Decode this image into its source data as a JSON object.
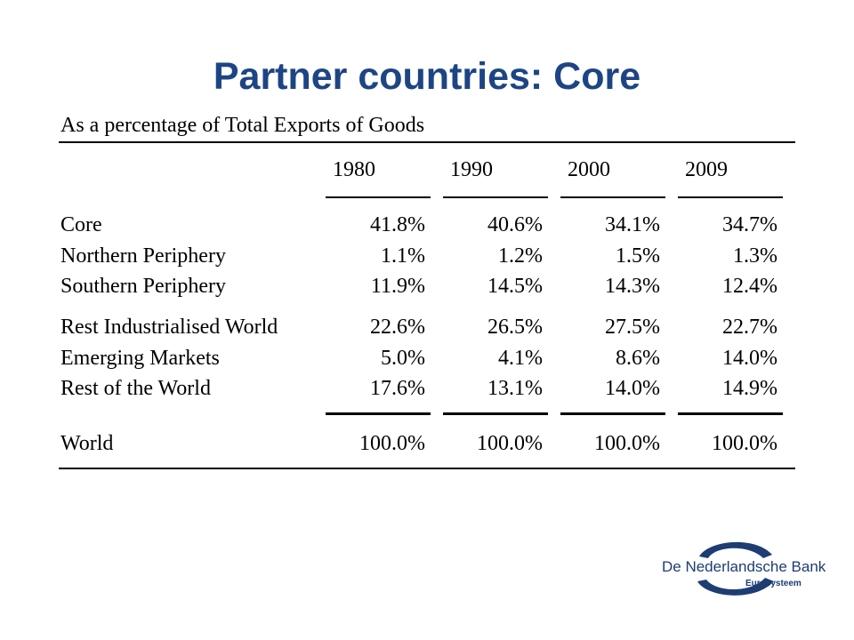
{
  "title": "Partner countries: Core",
  "subtitle": "As a percentage of Total Exports of Goods",
  "table": {
    "columns": [
      "1980",
      "1990",
      "2000",
      "2009"
    ],
    "rows": [
      {
        "label": "Core",
        "values": [
          "41.8%",
          "40.6%",
          "34.1%",
          "34.7%"
        ]
      },
      {
        "label": "Northern Periphery",
        "values": [
          "1.1%",
          "1.2%",
          "1.5%",
          "1.3%"
        ]
      },
      {
        "label": "Southern Periphery",
        "values": [
          "11.9%",
          "14.5%",
          "14.3%",
          "12.4%"
        ]
      },
      {
        "label": "Rest Industrialised World",
        "values": [
          "22.6%",
          "26.5%",
          "27.5%",
          "22.7%"
        ]
      },
      {
        "label": "Emerging Markets",
        "values": [
          "5.0%",
          "4.1%",
          "8.6%",
          "14.0%"
        ]
      },
      {
        "label": "Rest of the World",
        "values": [
          "17.6%",
          "13.1%",
          "14.0%",
          "14.9%"
        ]
      }
    ],
    "total": {
      "label": "World",
      "values": [
        "100.0%",
        "100.0%",
        "100.0%",
        "100.0%"
      ]
    }
  },
  "logo": {
    "name": "De Nederlandsche Bank",
    "sub": "Eurosysteem",
    "color": "#1d3d73"
  },
  "colors": {
    "title": "#1d4585"
  }
}
